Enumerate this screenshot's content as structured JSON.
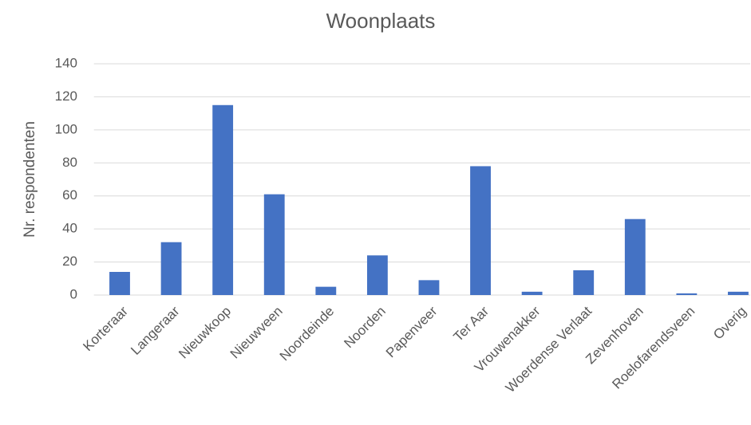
{
  "chart_data": {
    "type": "bar",
    "title": "Woonplaats",
    "y_label": "Nr. respondenten",
    "categories": [
      "Korteraar",
      "Langeraar",
      "Nieuwkoop",
      "Nieuwveen",
      "Noordeinde",
      "Noorden",
      "Papenveer",
      "Ter Aar",
      "Vrouwenakker",
      "Woerdense Verlaat",
      "Zevenhoven",
      "Roelofarendsveen",
      "Overig"
    ],
    "values": [
      14,
      32,
      115,
      61,
      5,
      24,
      9,
      78,
      2,
      15,
      46,
      1,
      2
    ],
    "color": "#4472c4",
    "ylim": [
      0,
      140
    ],
    "yticks": [
      0,
      20,
      40,
      60,
      80,
      100,
      120,
      140
    ],
    "grid": true
  }
}
